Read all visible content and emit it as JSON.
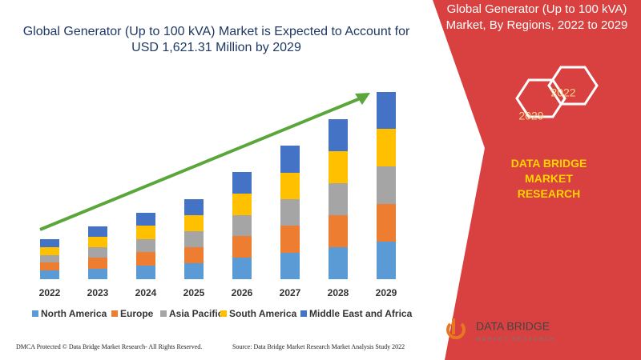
{
  "chart_data": {
    "type": "stacked_bar",
    "title": "Global Generator (Up to 100 kVA) Market is Expected to Account for USD 1,621.31 Million by 2029",
    "categories": [
      "2022",
      "2023",
      "2024",
      "2025",
      "2026",
      "2027",
      "2028",
      "2029"
    ],
    "series": [
      {
        "name": "North America",
        "color": "#5b9bd5",
        "values": [
          11,
          13,
          17,
          20,
          27,
          33,
          40,
          47
        ]
      },
      {
        "name": "Europe",
        "color": "#ed7d31",
        "values": [
          10,
          14,
          17,
          20,
          27,
          34,
          40,
          47
        ]
      },
      {
        "name": "Asia Pacific",
        "color": "#a5a5a5",
        "values": [
          9,
          13,
          16,
          20,
          26,
          33,
          40,
          47
        ]
      },
      {
        "name": "South America",
        "color": "#ffc000",
        "values": [
          10,
          13,
          17,
          20,
          27,
          33,
          40,
          47
        ]
      },
      {
        "name": "Middle East and Africa",
        "color": "#4472c4",
        "values": [
          10,
          13,
          16,
          20,
          27,
          34,
          40,
          46
        ]
      }
    ],
    "ylim": [
      0,
      250
    ]
  },
  "panel": {
    "title": "Global Generator (Up to 100 kVA) Market, By Regions, 2022 to 2029",
    "hex_start": "2022",
    "hex_end": "2029",
    "brand": "DATA BRIDGE MARKET RESEARCH"
  },
  "logo": {
    "name": "DATA BRIDGE",
    "tagline": "MARKET RESEARCH"
  },
  "footer": {
    "left": "DMCA Protected © Data Bridge Market Research- All Rights Reserved.",
    "right": "Source: Data Bridge Market Research Market Analysis Study 2022"
  }
}
